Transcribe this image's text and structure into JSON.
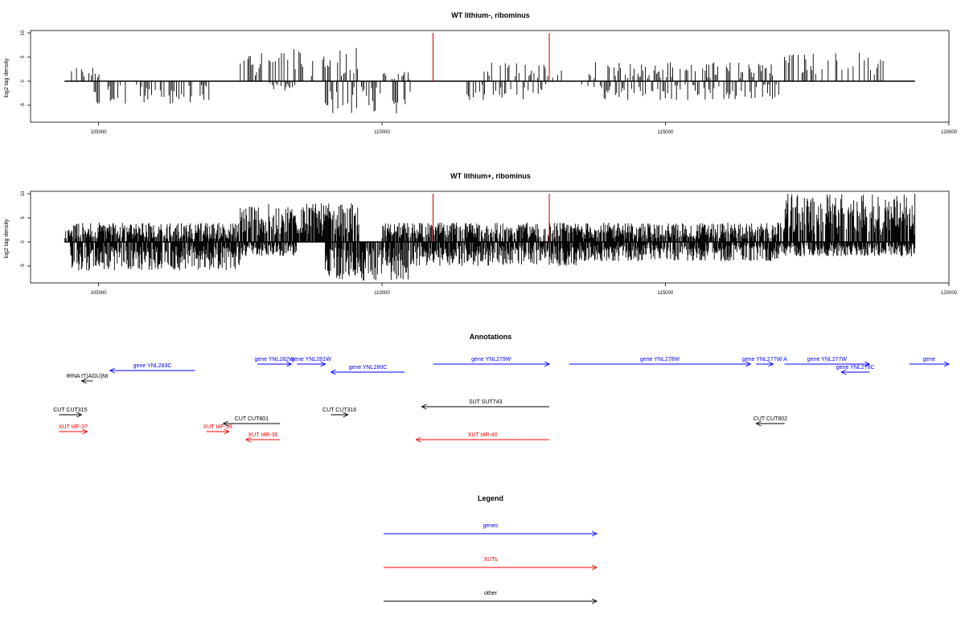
{
  "colors": {
    "gene": "#0000ff",
    "xut": "#ff0000",
    "other": "#000000",
    "marker": "#cc0000",
    "coverage": "#000000"
  },
  "chart_data": [
    {
      "type": "bar",
      "title": "WT lithium-, ribominus",
      "ylabel": "log2 tag density",
      "xlim": [
        103800,
        120000
      ],
      "ylim": [
        -8.5,
        10.5
      ],
      "x_ticks": [
        105000,
        110000,
        115000,
        120000
      ],
      "y_ticks": [
        -5,
        0,
        5,
        10
      ],
      "x_start": 104400,
      "x_end": 119400,
      "markers": [
        110900,
        112950
      ],
      "marker_height": 10,
      "positive_regions": [
        [
          104500,
          105100,
          3
        ],
        [
          107500,
          109600,
          7
        ],
        [
          110000,
          110500,
          2
        ],
        [
          111800,
          113200,
          4
        ],
        [
          113500,
          117000,
          4
        ],
        [
          117100,
          118900,
          6
        ]
      ],
      "negative_regions": [
        [
          104900,
          107000,
          -5
        ],
        [
          108000,
          108500,
          -2
        ],
        [
          109000,
          110500,
          -7
        ],
        [
          111500,
          112900,
          -4
        ],
        [
          113500,
          117000,
          -4
        ]
      ],
      "density": "sparse"
    },
    {
      "type": "bar",
      "title": "WT lithium+, ribominus",
      "ylabel": "log2 tag density",
      "xlim": [
        103800,
        120000
      ],
      "ylim": [
        -8.5,
        10.5
      ],
      "x_ticks": [
        105000,
        110000,
        115000,
        120000
      ],
      "y_ticks": [
        -5,
        0,
        5,
        10
      ],
      "x_start": 104400,
      "x_end": 119400,
      "markers": [
        110900,
        112950
      ],
      "marker_height": 10,
      "positive_regions": [
        [
          104400,
          107500,
          4
        ],
        [
          107500,
          109600,
          8
        ],
        [
          110000,
          117100,
          4
        ],
        [
          117100,
          119400,
          10
        ]
      ],
      "negative_regions": [
        [
          104500,
          107500,
          -6
        ],
        [
          107500,
          108500,
          -3
        ],
        [
          109000,
          110500,
          -8
        ],
        [
          110500,
          113500,
          -5
        ],
        [
          113500,
          117000,
          -4
        ],
        [
          117000,
          119400,
          -3
        ]
      ],
      "density": "dense"
    }
  ],
  "annotations": {
    "title": "Annotations",
    "items": [
      {
        "label": "tRNA tT(AGU)Nt",
        "kind": "other",
        "start": 104900,
        "end": 104700,
        "row": 3
      },
      {
        "label": "gene YNL283C",
        "kind": "gene",
        "start": 106700,
        "end": 105200,
        "row": 2
      },
      {
        "label": "gene YNL282W",
        "kind": "gene",
        "start": 107800,
        "end": 108400,
        "row": 0
      },
      {
        "label": "gene YNL281W",
        "kind": "gene",
        "start": 108500,
        "end": 109000,
        "row": 0
      },
      {
        "label": "gene YNL280C",
        "kind": "gene",
        "start": 110400,
        "end": 109100,
        "row": 1
      },
      {
        "label": "gene YNL279W",
        "kind": "gene",
        "start": 110900,
        "end": 112950,
        "row": 0
      },
      {
        "label": "gene YNL278W",
        "kind": "gene",
        "start": 113300,
        "end": 116500,
        "row": 0
      },
      {
        "label": "gene YNL277W-A",
        "kind": "gene",
        "start": 116600,
        "end": 116900,
        "row": 0
      },
      {
        "label": "gene YNL277W",
        "kind": "gene",
        "start": 117100,
        "end": 118600,
        "row": 0
      },
      {
        "label": "gene YNL276C",
        "kind": "gene",
        "start": 118600,
        "end": 118100,
        "row": 1
      },
      {
        "label": "gene",
        "kind": "gene",
        "start": 119300,
        "end": 120000,
        "row": 0
      },
      {
        "label": "SUT SUT743",
        "kind": "other",
        "start": 112950,
        "end": 110700,
        "row": 5
      },
      {
        "label": "CUT CUT315",
        "kind": "other",
        "start": 104300,
        "end": 104700,
        "row": 6
      },
      {
        "label": "CUT CUT801",
        "kind": "other",
        "start": 108200,
        "end": 107200,
        "row": 7
      },
      {
        "label": "CUT CUT316",
        "kind": "other",
        "start": 109100,
        "end": 109400,
        "row": 6
      },
      {
        "label": "CUT CUT802",
        "kind": "other",
        "start": 117100,
        "end": 116600,
        "row": 7
      },
      {
        "label": "XUT t4F-37",
        "kind": "xut",
        "start": 104300,
        "end": 104800,
        "row": 8
      },
      {
        "label": "XUT t4F-39",
        "kind": "xut",
        "start": 106900,
        "end": 107300,
        "row": 8
      },
      {
        "label": "XUT t4R-36",
        "kind": "xut",
        "start": 108200,
        "end": 107600,
        "row": 9
      },
      {
        "label": "XUT t4R-40",
        "kind": "xut",
        "start": 112950,
        "end": 110600,
        "row": 9
      }
    ]
  },
  "legend": {
    "title": "Legend",
    "entries": [
      {
        "label": "genes",
        "kind": "gene"
      },
      {
        "label": "XUTs",
        "kind": "xut"
      },
      {
        "label": "other",
        "kind": "other"
      }
    ]
  }
}
